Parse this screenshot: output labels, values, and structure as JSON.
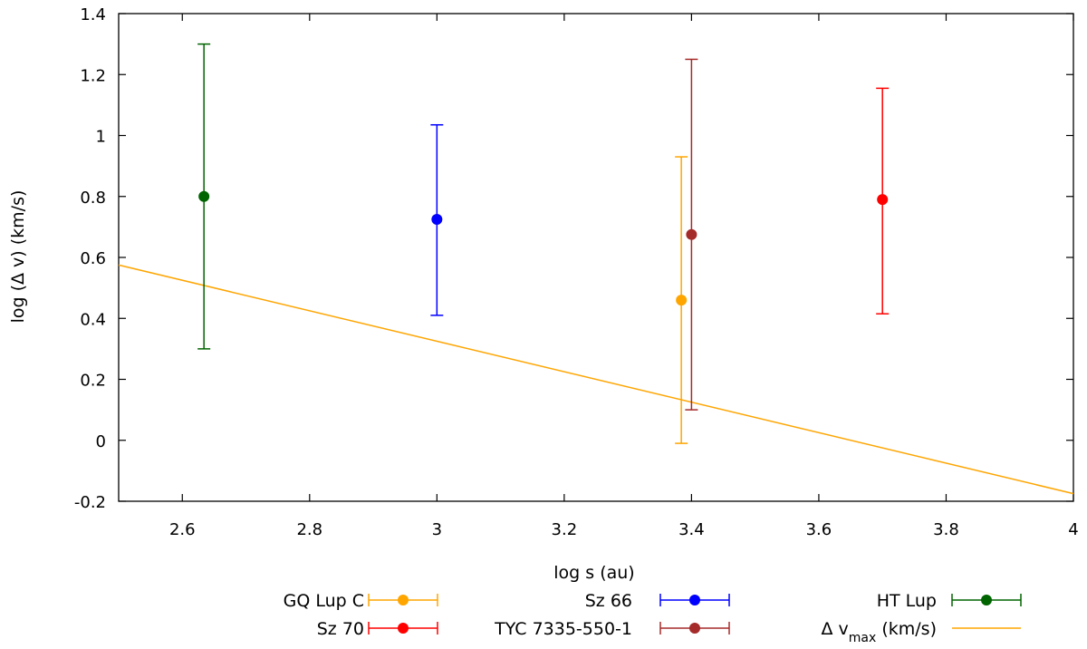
{
  "chart_data": {
    "type": "scatter",
    "xlabel": "log s (au)",
    "ylabel": "log (Δ v) (km/s)",
    "xlim": [
      2.5,
      4.0
    ],
    "ylim": [
      -0.2,
      1.4
    ],
    "xticks": [
      2.6,
      2.8,
      3.0,
      3.2,
      3.4,
      3.6,
      3.8,
      4.0
    ],
    "xtick_labels": [
      "2.6",
      "2.8",
      "3",
      "3.2",
      "3.4",
      "3.6",
      "3.8",
      "4"
    ],
    "yticks": [
      -0.2,
      0.0,
      0.2,
      0.4,
      0.6,
      0.8,
      1.0,
      1.2,
      1.4
    ],
    "ytick_labels": [
      "-0.2",
      "0",
      "0.2",
      "0.4",
      "0.6",
      "0.8",
      "1",
      "1.2",
      "1.4"
    ],
    "grid": false,
    "legend_position": "bottom",
    "series": [
      {
        "name": "GQ Lup C",
        "color": "#ffa500",
        "x": 3.384,
        "y": 0.46,
        "ylow": -0.01,
        "yhigh": 0.93
      },
      {
        "name": "Sz 66",
        "color": "#0000ff",
        "x": 3.0,
        "y": 0.725,
        "ylow": 0.41,
        "yhigh": 1.035
      },
      {
        "name": "HT Lup",
        "color": "#006400",
        "x": 2.634,
        "y": 0.8,
        "ylow": 0.3,
        "yhigh": 1.3
      },
      {
        "name": "Sz 70",
        "color": "#ff0000",
        "x": 3.7,
        "y": 0.79,
        "ylow": 0.415,
        "yhigh": 1.155
      },
      {
        "name": "TYC 7335-550-1",
        "color": "#a52a2a",
        "x": 3.4,
        "y": 0.675,
        "ylow": 0.1,
        "yhigh": 1.25
      }
    ],
    "line": {
      "name_main": "Δ v",
      "name_sub": "max",
      "name_unit": " (km/s)",
      "color": "#ffa500",
      "x": [
        2.5,
        4.0
      ],
      "y": [
        0.575,
        -0.175
      ]
    },
    "legend_order": [
      "GQ Lup C",
      "Sz 66",
      "HT Lup",
      "Sz 70",
      "TYC 7335-550-1",
      "line"
    ]
  }
}
